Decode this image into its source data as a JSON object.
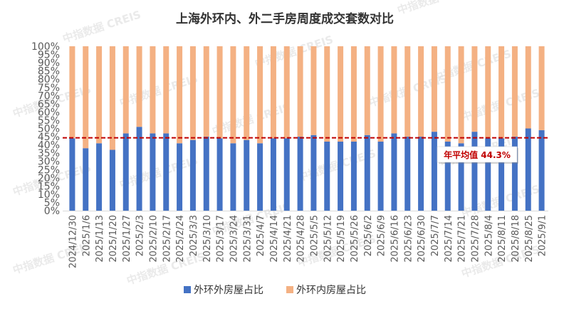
{
  "chart_data": {
    "type": "bar",
    "stacked": true,
    "percent": true,
    "title": "上海外环内、外二手房周度成交套数对比",
    "categories": [
      "2024/12/30",
      "2025/1/6",
      "2025/1/13",
      "2025/1/20",
      "2025/1/27",
      "2025/2/3",
      "2025/2/10",
      "2025/2/17",
      "2025/2/24",
      "2025/3/3",
      "2025/3/10",
      "2025/3/17",
      "2025/3/24",
      "2025/3/31",
      "2025/4/7",
      "2025/4/14",
      "2025/4/21",
      "2025/4/28",
      "2025/5/5",
      "2025/5/12",
      "2025/5/19",
      "2025/5/26",
      "2025/6/2",
      "2025/6/9",
      "2025/6/16",
      "2025/6/23",
      "2025/6/30",
      "2025/7/7",
      "2025/7/14",
      "2025/7/21",
      "2025/7/28",
      "2025/8/4",
      "2025/8/11",
      "2025/8/18",
      "2025/8/25",
      "2025/9/1"
    ],
    "series": [
      {
        "name": "外环外房屋占比",
        "color": "#4472C4",
        "values": [
          44,
          38,
          41,
          37,
          47,
          51,
          47,
          47,
          41,
          43,
          45,
          44,
          41,
          43,
          41,
          44,
          44,
          45,
          46,
          42,
          42,
          42,
          46,
          42,
          47,
          45,
          45,
          48,
          42,
          41,
          48,
          44,
          44,
          45,
          50,
          49
        ]
      },
      {
        "name": "外环内房屋占比",
        "color": "#F4B183",
        "values": [
          56,
          62,
          59,
          63,
          53,
          49,
          53,
          53,
          59,
          57,
          55,
          56,
          59,
          57,
          59,
          56,
          56,
          55,
          54,
          58,
          58,
          58,
          54,
          58,
          53,
          55,
          55,
          52,
          58,
          59,
          52,
          56,
          56,
          55,
          50,
          51
        ]
      }
    ],
    "ylim": [
      0,
      100
    ],
    "yticks": [
      "0%",
      "5%",
      "10%",
      "15%",
      "20%",
      "25%",
      "30%",
      "35%",
      "40%",
      "45%",
      "50%",
      "55%",
      "60%",
      "65%",
      "70%",
      "75%",
      "80%",
      "85%",
      "90%",
      "95%",
      "100%"
    ],
    "reference_line": {
      "value": 44.3,
      "color": "#C00000"
    },
    "annotation": "年平均值 44.3%",
    "legend_position": "bottom",
    "grid": false,
    "watermark": "中指数据 CREIS"
  }
}
